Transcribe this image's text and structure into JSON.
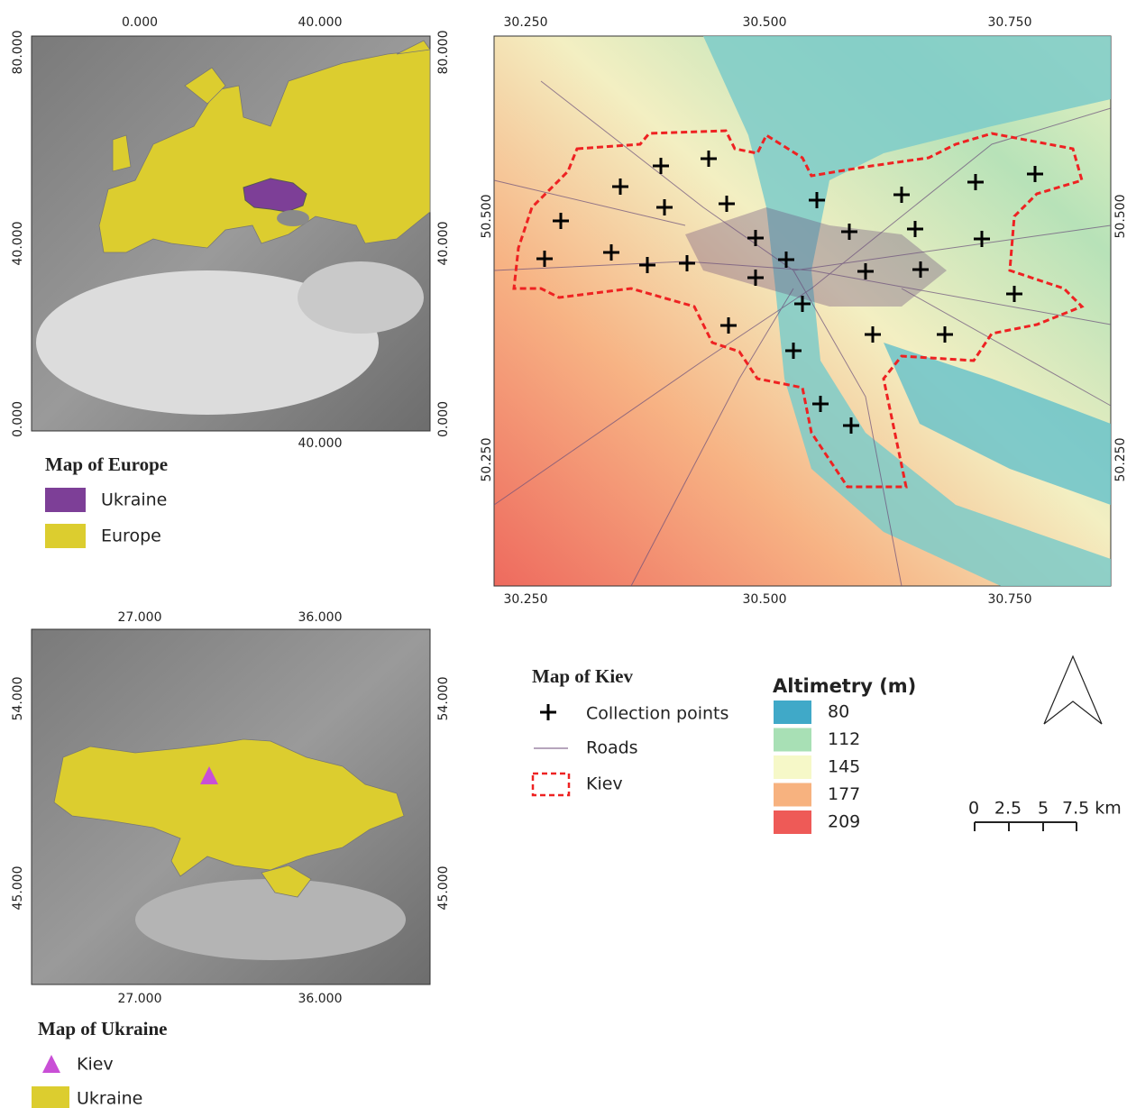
{
  "europe_map": {
    "top_labels": [
      "0.000",
      "40.000"
    ],
    "left_labels": [
      "80.000",
      "40.000",
      "0.000"
    ],
    "right_labels": [
      "80.000",
      "40.000",
      "0.000"
    ],
    "bottom_labels": [
      "40.000"
    ],
    "legend": {
      "title": "Map of Europe",
      "items": [
        {
          "label": "Ukraine",
          "color": "#7d3f97"
        },
        {
          "label": "Europe",
          "color": "#dccd2f"
        }
      ]
    }
  },
  "kiev_map": {
    "top_labels": [
      "30.250",
      "30.500",
      "30.750"
    ],
    "bottom_labels": [
      "30.250",
      "30.500",
      "30.750"
    ],
    "left_labels": [
      "50.500",
      "50.250"
    ],
    "right_labels": [
      "50.500",
      "50.250"
    ],
    "legend": {
      "title": "Map of Kiev",
      "items": [
        "Collection points",
        "Roads",
        "Kiev"
      ]
    },
    "altimetry": {
      "title": "Altimetry (m)",
      "items": [
        {
          "label": "80",
          "color": "#40a9c8"
        },
        {
          "label": "112",
          "color": "#a8e0b5"
        },
        {
          "label": "145",
          "color": "#f6f8c8"
        },
        {
          "label": "177",
          "color": "#f7b27f"
        },
        {
          "label": "209",
          "color": "#ee5a57"
        }
      ]
    },
    "scale_bar": {
      "labels": [
        "0",
        "2.5",
        "5",
        "7.5 km"
      ]
    }
  },
  "ukraine_map": {
    "top_labels": [
      "27.000",
      "36.000"
    ],
    "bottom_labels": [
      "27.000",
      "36.000"
    ],
    "left_labels": [
      "54.000",
      "45.000"
    ],
    "right_labels": [
      "54.000",
      "45.000"
    ],
    "legend": {
      "title": "Map of Ukraine",
      "items": [
        {
          "label": "Kiev",
          "color": "#c94fd6"
        },
        {
          "label": "Ukraine",
          "color": "#dccd2f"
        }
      ]
    }
  }
}
